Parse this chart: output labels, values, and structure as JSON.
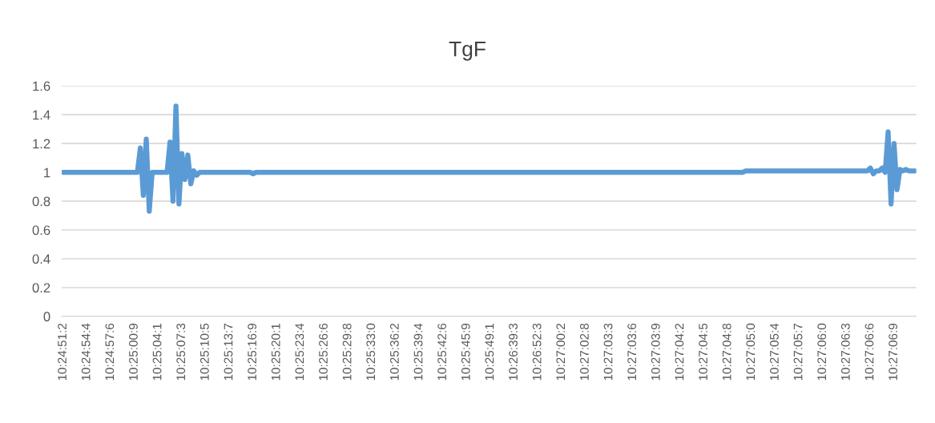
{
  "chart_data": {
    "type": "line",
    "title": "TgF",
    "categories": [
      "10:24:51:2",
      null,
      null,
      null,
      null,
      null,
      null,
      null,
      "10:24:54:4",
      null,
      null,
      null,
      null,
      null,
      null,
      null,
      "10:24:57:6",
      null,
      null,
      null,
      null,
      null,
      null,
      null,
      "10:25:00:9",
      null,
      null,
      null,
      null,
      null,
      null,
      null,
      "10:25:04:1",
      null,
      null,
      null,
      null,
      null,
      null,
      null,
      "10:25:07:3",
      null,
      null,
      null,
      null,
      null,
      null,
      null,
      "10:25:10:5",
      null,
      null,
      null,
      null,
      null,
      null,
      null,
      "10:25:13:7",
      null,
      null,
      null,
      null,
      null,
      null,
      null,
      "10:25:16:9",
      null,
      null,
      null,
      null,
      null,
      null,
      null,
      "10:25:20:1",
      null,
      null,
      null,
      null,
      null,
      null,
      null,
      "10:25:23:4",
      null,
      null,
      null,
      null,
      null,
      null,
      null,
      "10:25:26:6",
      null,
      null,
      null,
      null,
      null,
      null,
      null,
      "10:25:29:8",
      null,
      null,
      null,
      null,
      null,
      null,
      null,
      "10:25:33:0",
      null,
      null,
      null,
      null,
      null,
      null,
      null,
      "10:25:36:2",
      null,
      null,
      null,
      null,
      null,
      null,
      null,
      "10:25:39:4",
      null,
      null,
      null,
      null,
      null,
      null,
      null,
      "10:25:42:6",
      null,
      null,
      null,
      null,
      null,
      null,
      null,
      "10:25:45:9",
      null,
      null,
      null,
      null,
      null,
      null,
      null,
      "10:25:49:1",
      null,
      null,
      null,
      null,
      null,
      null,
      null,
      "10:26:39:3",
      null,
      null,
      null,
      null,
      null,
      null,
      null,
      "10:26:52:3",
      null,
      null,
      null,
      null,
      null,
      null,
      null,
      "10:27:00:2",
      null,
      null,
      null,
      null,
      null,
      null,
      null,
      "10:27:02:8",
      null,
      null,
      null,
      null,
      null,
      null,
      null,
      "10:27:03:3",
      null,
      null,
      null,
      null,
      null,
      null,
      null,
      "10:27:03:6",
      null,
      null,
      null,
      null,
      null,
      null,
      null,
      "10:27:03:9",
      null,
      null,
      null,
      null,
      null,
      null,
      null,
      "10:27:04:2",
      null,
      null,
      null,
      null,
      null,
      null,
      null,
      "10:27:04:5",
      null,
      null,
      null,
      null,
      null,
      null,
      null,
      "10:27:04:8",
      null,
      null,
      null,
      null,
      null,
      null,
      null,
      "10:27:05:0",
      null,
      null,
      null,
      null,
      null,
      null,
      null,
      "10:27:05:4",
      null,
      null,
      null,
      null,
      null,
      null,
      null,
      "10:27:05:7",
      null,
      null,
      null,
      null,
      null,
      null,
      null,
      "10:27:06:0",
      null,
      null,
      null,
      null,
      null,
      null,
      null,
      "10:27:06:3",
      null,
      null,
      null,
      null,
      null,
      null,
      null,
      "10:27:06:6",
      null,
      null,
      null,
      null,
      null,
      null,
      null,
      "10:27:06:9",
      null,
      null,
      null,
      null,
      null,
      null,
      null
    ],
    "series": [
      {
        "color": "#5b9bd5",
        "values": [
          1,
          1,
          1,
          1,
          1,
          1,
          1,
          1,
          1,
          1,
          1,
          1,
          1,
          1,
          1,
          1,
          1,
          1,
          1,
          1,
          1,
          1,
          1,
          1,
          1,
          1,
          1.17,
          0.84,
          1.23,
          0.73,
          1,
          1,
          1,
          1,
          1,
          1,
          1.21,
          0.8,
          1.46,
          0.78,
          1.13,
          0.95,
          1.12,
          0.92,
          1.01,
          0.98,
          1,
          1,
          1,
          1,
          1,
          1,
          1,
          1,
          1,
          1,
          1,
          1,
          1,
          1,
          1,
          1,
          1,
          1,
          0.99,
          1,
          1,
          1,
          1,
          1,
          1,
          1,
          1,
          1,
          1,
          1,
          1,
          1,
          1,
          1,
          1,
          1,
          1,
          1,
          1,
          1,
          1,
          1,
          1,
          1,
          1,
          1,
          1,
          1,
          1,
          1,
          1,
          1,
          1,
          1,
          1,
          1,
          1,
          1,
          1,
          1,
          1,
          1,
          1,
          1,
          1,
          1,
          1,
          1,
          1,
          1,
          1,
          1,
          1,
          1,
          1,
          1,
          1,
          1,
          1,
          1,
          1,
          1,
          1,
          1,
          1,
          1,
          1,
          1,
          1,
          1,
          1,
          1,
          1,
          1,
          1,
          1,
          1,
          1,
          1,
          1,
          1,
          1,
          1,
          1,
          1,
          1,
          1,
          1,
          1,
          1,
          1,
          1,
          1,
          1,
          1,
          1,
          1,
          1,
          1,
          1,
          1,
          1,
          1,
          1,
          1,
          1,
          1,
          1,
          1,
          1,
          1,
          1,
          1,
          1,
          1,
          1,
          1,
          1,
          1,
          1,
          1,
          1,
          1,
          1,
          1,
          1,
          1,
          1,
          1,
          1,
          1,
          1,
          1,
          1,
          1,
          1,
          1,
          1,
          1,
          1,
          1,
          1,
          1,
          1,
          1,
          1,
          1,
          1,
          1,
          1,
          1,
          1,
          1,
          1,
          1,
          1,
          1,
          1,
          1,
          1,
          1,
          1,
          1,
          1,
          1.01,
          1.01,
          1.01,
          1.01,
          1.01,
          1.01,
          1.01,
          1.01,
          1.01,
          1.01,
          1.01,
          1.01,
          1.01,
          1.01,
          1.01,
          1.01,
          1.01,
          1.01,
          1.01,
          1.01,
          1.01,
          1.01,
          1.01,
          1.01,
          1.01,
          1.01,
          1.01,
          1.01,
          1.01,
          1.01,
          1.01,
          1.01,
          1.01,
          1.01,
          1.01,
          1.01,
          1.01,
          1.01,
          1.01,
          1.01,
          1.01,
          1.01,
          1.03,
          0.99,
          1.01,
          1.01,
          1.03,
          1,
          1.28,
          0.78,
          1.2,
          0.88,
          1.02,
          1.01,
          1.02,
          1.01,
          1.01,
          1.01
        ]
      }
    ],
    "ylim": [
      0,
      1.6
    ],
    "yticks": [
      0,
      0.2,
      0.4,
      0.6,
      0.8,
      1,
      1.2,
      1.4,
      1.6
    ],
    "grid": "y",
    "marker": "none",
    "line_style": "solid"
  }
}
